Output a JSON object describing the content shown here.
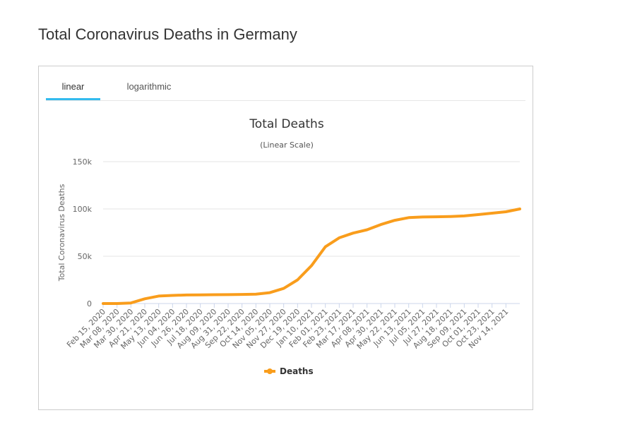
{
  "page": {
    "title": "Total Coronavirus Deaths in Germany"
  },
  "tabs": [
    {
      "label": "linear",
      "active": true
    },
    {
      "label": "logarithmic",
      "active": false
    }
  ],
  "colors": {
    "series": "#f99d1c",
    "tab_active": "#33bbee"
  },
  "chart_data": {
    "type": "line",
    "title": "Total Deaths",
    "subtitle": "(Linear Scale)",
    "xlabel": "",
    "ylabel": "Total Coronavirus Deaths",
    "ylim": [
      0,
      150000
    ],
    "yticks": [
      {
        "value": 0,
        "label": "0"
      },
      {
        "value": 50000,
        "label": "50k"
      },
      {
        "value": 100000,
        "label": "100k"
      },
      {
        "value": 150000,
        "label": "150k"
      }
    ],
    "grid": true,
    "legend": "bottom-center",
    "categories": [
      "Feb 15, 2020",
      "Mar 08, 2020",
      "Mar 30, 2020",
      "Apr 21, 2020",
      "May 13, 2020",
      "Jun 04, 2020",
      "Jun 26, 2020",
      "Jul 18, 2020",
      "Aug 09, 2020",
      "Aug 31, 2020",
      "Sep 22, 2020",
      "Oct 14, 2020",
      "Nov 05, 2020",
      "Nov 27, 2020",
      "Dec 19, 2020",
      "Jan 10, 2021",
      "Feb 01, 2021",
      "Feb 23, 2021",
      "Mar 17, 2021",
      "Apr 08, 2021",
      "Apr 30, 2021",
      "May 22, 2021",
      "Jun 13, 2021",
      "Jul 05, 2021",
      "Jul 27, 2021",
      "Aug 18, 2021",
      "Sep 09, 2021",
      "Oct 01, 2021",
      "Oct 23, 2021",
      "Nov 14, 2021"
    ],
    "series": [
      {
        "name": "Deaths",
        "x": [
          "Feb 15, 2020",
          "Mar 08, 2020",
          "Mar 30, 2020",
          "Apr 21, 2020",
          "May 13, 2020",
          "Jun 04, 2020",
          "Jun 26, 2020",
          "Jul 18, 2020",
          "Aug 09, 2020",
          "Aug 31, 2020",
          "Sep 22, 2020",
          "Oct 14, 2020",
          "Nov 05, 2020",
          "Nov 27, 2020",
          "Dec 19, 2020",
          "Jan 10, 2021",
          "Feb 01, 2021",
          "Feb 23, 2021",
          "Mar 17, 2021",
          "Apr 08, 2021",
          "Apr 30, 2021",
          "May 22, 2021",
          "Jun 13, 2021",
          "Jul 05, 2021",
          "Jul 27, 2021",
          "Aug 18, 2021",
          "Sep 09, 2021",
          "Oct 01, 2021",
          "Oct 23, 2021",
          "Nov 14, 2021",
          "Nov 25, 2021"
        ],
        "values": [
          0,
          12,
          600,
          5000,
          7900,
          8600,
          9000,
          9100,
          9300,
          9400,
          9600,
          9900,
          11500,
          16000,
          25000,
          40000,
          60000,
          69500,
          74500,
          78000,
          83500,
          88000,
          90800,
          91500,
          91700,
          92000,
          92600,
          94000,
          95500,
          97000,
          100000
        ]
      }
    ]
  }
}
